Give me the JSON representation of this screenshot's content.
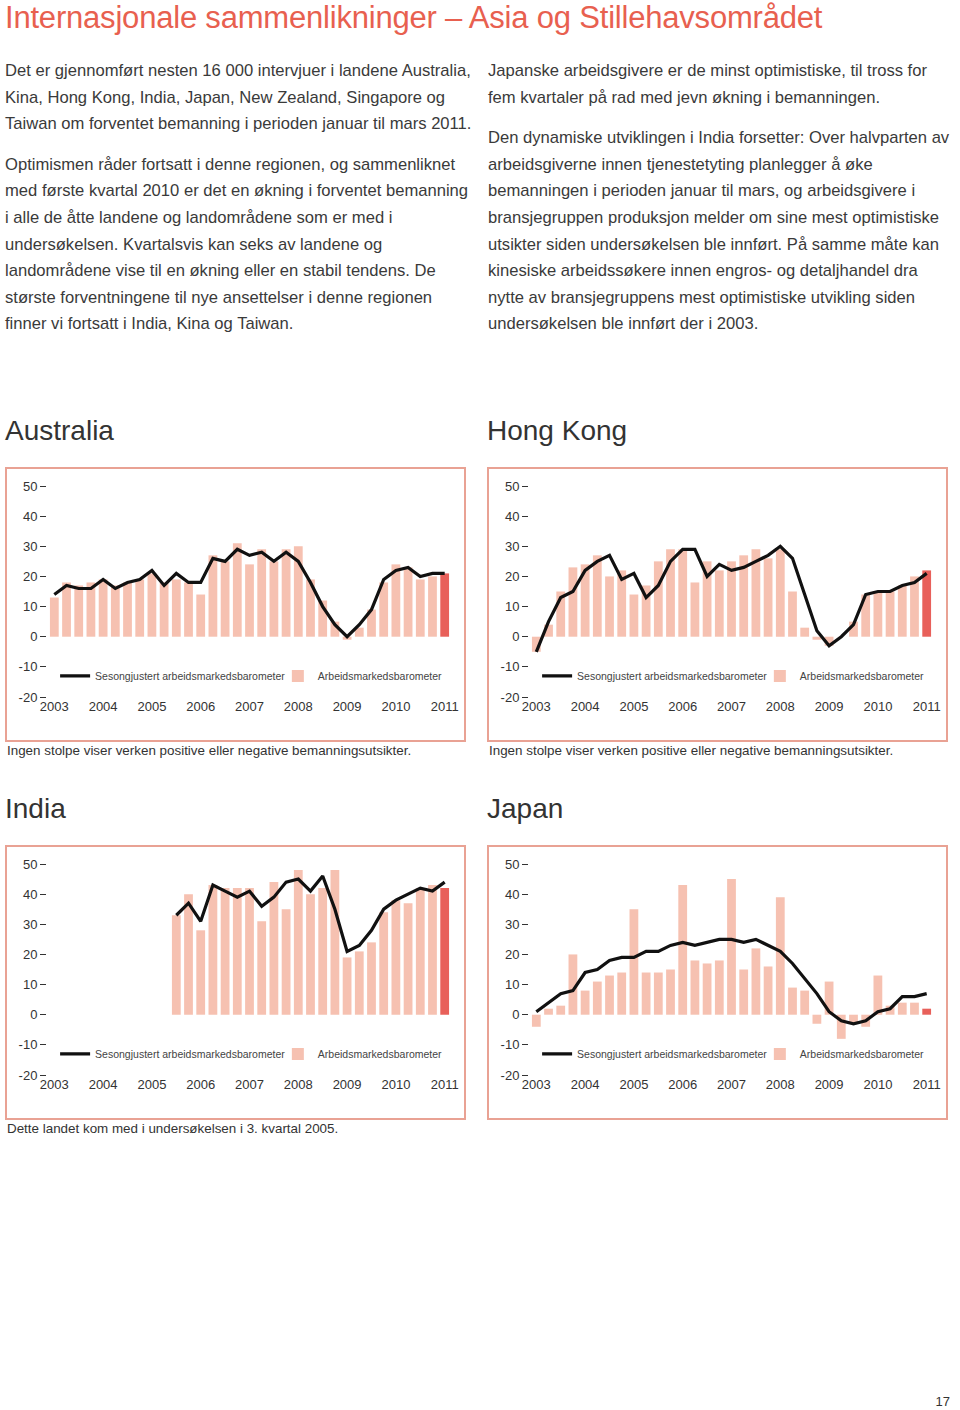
{
  "title": "Internasjonale sammenlikninger – Asia og Stillehavsområdet",
  "columns": [
    [
      "Det er gjennomført nesten 16 000 intervjuer i landene Australia, Kina, Hong Kong, India, Japan, New Zealand, Singapore og Taiwan om forventet bemanning i perioden januar til mars 2011.",
      "Optimismen råder fortsatt i denne regionen, og sammenliknet med første kvartal 2010 er det en økning i forventet bemanning i alle de åtte landene og landområdene som er med i undersøkelsen. Kvartalsvis kan seks av landene og landområdene vise til en økning eller en stabil tendens. De største forventningene til nye ansettelser i denne regionen finner vi fortsatt i India, Kina og Taiwan."
    ],
    [
      "Japanske arbeidsgivere er de minst optimistiske, til tross for fem kvartaler på rad med jevn økning i bemanningen.",
      "Den dynamiske utviklingen i India forsetter: Over halvparten av arbeidsgiverne innen tjenestetyting planlegger å øke bemanningen i perioden januar til mars, og arbeidsgivere i bransjegruppen produksjon melder om sine mest optimistiske utsikter siden undersøkelsen ble innført. På samme måte kan kinesiske arbeidssøkere innen engros- og detaljhandel dra nytte av bransjegruppens mest optimistiske utvikling siden undersøkelsen ble innført der i 2003."
    ]
  ],
  "chart_data": [
    {
      "type": "bar",
      "title": "Australia",
      "note": "Ingen stolpe viser verken positive eller negative bemanningsutsikter.",
      "categories": [
        "2003",
        null,
        null,
        null,
        "2004",
        null,
        null,
        null,
        "2005",
        null,
        null,
        null,
        "2006",
        null,
        null,
        null,
        "2007",
        null,
        null,
        null,
        "2008",
        null,
        null,
        null,
        "2009",
        null,
        null,
        null,
        "2010",
        null,
        null,
        null,
        "2011"
      ],
      "series": [
        {
          "name": "Sesongjustert arbeidsmarkedsbarometer",
          "type": "line",
          "color": "#111111",
          "values": [
            14,
            17,
            16,
            16,
            19,
            16,
            18,
            19,
            22,
            17,
            21,
            18,
            18,
            26,
            25,
            29,
            27,
            28,
            25,
            28,
            25,
            18,
            10,
            4,
            0,
            4,
            9,
            19,
            22,
            23,
            20,
            21,
            21
          ]
        },
        {
          "name": "Arbeidsmarkedsbarometer",
          "type": "bar",
          "color": "#f6c1b1",
          "colors": [
            "#f6c1b1",
            "#f6c1b1",
            "#f6c1b1",
            "#f6c1b1",
            "#f6c1b1",
            "#f6c1b1",
            "#f6c1b1",
            "#f6c1b1",
            "#f6c1b1",
            "#f6c1b1",
            "#f6c1b1",
            "#f6c1b1",
            "#f6c1b1",
            "#f6c1b1",
            "#f6c1b1",
            "#f6c1b1",
            "#f6c1b1",
            "#f6c1b1",
            "#f6c1b1",
            "#f6c1b1",
            "#f6c1b1",
            "#f6c1b1",
            "#f6c1b1",
            "#f6c1b1",
            "#f6c1b1",
            "#f6c1b1",
            "#f6c1b1",
            "#f6c1b1",
            "#f6c1b1",
            "#f6c1b1",
            "#f6c1b1",
            "#f6c1b1",
            "#e8605a"
          ],
          "values": [
            13,
            18,
            17,
            18,
            19,
            17,
            18,
            19,
            21,
            18,
            19,
            18,
            14,
            27,
            25,
            31,
            24,
            29,
            25,
            29,
            30,
            19,
            12,
            5,
            -1,
            3,
            9,
            18,
            24,
            23,
            19,
            20,
            21
          ]
        }
      ],
      "ylim": [
        -20,
        50
      ],
      "yticks": [
        -20,
        -10,
        0,
        10,
        20,
        30,
        40,
        50
      ],
      "grid": false,
      "legend": "bottom"
    },
    {
      "type": "bar",
      "title": "Hong Kong",
      "note": "Ingen stolpe viser verken positive eller negative bemanningsutsikter.",
      "categories": [
        "2003",
        null,
        null,
        null,
        "2004",
        null,
        null,
        null,
        "2005",
        null,
        null,
        null,
        "2006",
        null,
        null,
        null,
        "2007",
        null,
        null,
        null,
        "2008",
        null,
        null,
        null,
        "2009",
        null,
        null,
        null,
        "2010",
        null,
        null,
        null,
        "2011"
      ],
      "series": [
        {
          "name": "Sesongjustert arbeidsmarkedsbarometer",
          "type": "line",
          "color": "#111111",
          "values": [
            -5,
            5,
            13,
            15,
            22,
            25,
            27,
            19,
            21,
            13,
            17,
            25,
            29,
            29,
            20,
            24,
            22,
            23,
            25,
            27,
            30,
            26,
            14,
            2,
            -3,
            0,
            4,
            14,
            15,
            15,
            17,
            18,
            21
          ]
        },
        {
          "name": "Arbeidsmarkedsbarometer",
          "type": "bar",
          "color": "#f6c1b1",
          "colors": [
            "#f6c1b1",
            "#f6c1b1",
            "#f6c1b1",
            "#f6c1b1",
            "#f6c1b1",
            "#f6c1b1",
            "#f6c1b1",
            "#f6c1b1",
            "#f6c1b1",
            "#f6c1b1",
            "#f6c1b1",
            "#f6c1b1",
            "#f6c1b1",
            "#f6c1b1",
            "#f6c1b1",
            "#f6c1b1",
            "#f6c1b1",
            "#f6c1b1",
            "#f6c1b1",
            "#f6c1b1",
            "#f6c1b1",
            "#f6c1b1",
            "#f6c1b1",
            "#f6c1b1",
            "#f6c1b1",
            "#f6c1b1",
            "#f6c1b1",
            "#f6c1b1",
            "#f6c1b1",
            "#f6c1b1",
            "#f6c1b1",
            "#f6c1b1",
            "#e8605a"
          ],
          "values": [
            -5,
            4,
            15,
            23,
            24,
            27,
            20,
            22,
            14,
            17,
            25,
            29,
            29,
            18,
            25,
            22,
            25,
            27,
            29,
            26,
            29,
            15,
            3,
            -1,
            -3,
            0,
            5,
            14,
            15,
            15,
            17,
            20,
            22
          ]
        }
      ],
      "ylim": [
        -20,
        50
      ],
      "yticks": [
        -20,
        -10,
        0,
        10,
        20,
        30,
        40,
        50
      ],
      "grid": false,
      "legend": "bottom"
    },
    {
      "type": "bar",
      "title": "India",
      "note": "Dette landet kom med i undersøkelsen i 3. kvartal 2005.",
      "categories": [
        "2003",
        null,
        null,
        null,
        "2004",
        null,
        null,
        null,
        "2005",
        null,
        null,
        null,
        "2006",
        null,
        null,
        null,
        "2007",
        null,
        null,
        null,
        "2008",
        null,
        null,
        null,
        "2009",
        null,
        null,
        null,
        "2010",
        null,
        null,
        null,
        "2011"
      ],
      "series": [
        {
          "name": "Sesongjustert arbeidsmarkedsbarometer",
          "type": "line",
          "color": "#111111",
          "values": [
            null,
            null,
            null,
            null,
            null,
            null,
            null,
            null,
            null,
            null,
            33,
            37,
            31,
            43,
            41,
            39,
            41,
            36,
            39,
            44,
            45,
            41,
            46,
            35,
            21,
            23,
            28,
            35,
            38,
            40,
            42,
            41,
            44
          ]
        },
        {
          "name": "Arbeidsmarkedsbarometer",
          "type": "bar",
          "color": "#f6c1b1",
          "colors": [
            "#f6c1b1",
            "#f6c1b1",
            "#f6c1b1",
            "#f6c1b1",
            "#f6c1b1",
            "#f6c1b1",
            "#f6c1b1",
            "#f6c1b1",
            "#f6c1b1",
            "#f6c1b1",
            "#f6c1b1",
            "#f6c1b1",
            "#f6c1b1",
            "#f6c1b1",
            "#f6c1b1",
            "#f6c1b1",
            "#f6c1b1",
            "#f6c1b1",
            "#f6c1b1",
            "#f6c1b1",
            "#f6c1b1",
            "#f6c1b1",
            "#f6c1b1",
            "#f6c1b1",
            "#f6c1b1",
            "#f6c1b1",
            "#f6c1b1",
            "#f6c1b1",
            "#f6c1b1",
            "#f6c1b1",
            "#f6c1b1",
            "#f6c1b1",
            "#e8605a"
          ],
          "values": [
            null,
            null,
            null,
            null,
            null,
            null,
            null,
            null,
            null,
            null,
            33,
            40,
            28,
            43,
            42,
            42,
            42,
            31,
            44,
            35,
            48,
            40,
            42,
            48,
            19,
            21,
            24,
            34,
            38,
            37,
            42,
            43,
            42
          ]
        }
      ],
      "ylim": [
        -20,
        50
      ],
      "yticks": [
        -20,
        -10,
        0,
        10,
        20,
        30,
        40,
        50
      ],
      "grid": false,
      "legend": "bottom"
    },
    {
      "type": "bar",
      "title": "Japan",
      "categories": [
        "2003",
        null,
        null,
        null,
        "2004",
        null,
        null,
        null,
        "2005",
        null,
        null,
        null,
        "2006",
        null,
        null,
        null,
        "2007",
        null,
        null,
        null,
        "2008",
        null,
        null,
        null,
        "2009",
        null,
        null,
        null,
        "2010",
        null,
        null,
        null,
        "2011"
      ],
      "series": [
        {
          "name": "Sesongjustert arbeidsmarkedsbarometer",
          "type": "line",
          "color": "#111111",
          "values": [
            1,
            4,
            7,
            8,
            14,
            15,
            18,
            19,
            19,
            21,
            21,
            23,
            24,
            23,
            24,
            25,
            25,
            24,
            25,
            23,
            21,
            17,
            12,
            7,
            1,
            -2,
            -3,
            -2,
            1,
            2,
            6,
            6,
            7
          ]
        },
        {
          "name": "Arbeidsmarkedsbarometer",
          "type": "bar",
          "color": "#f6c1b1",
          "colors": [
            "#f6c1b1",
            "#f6c1b1",
            "#f6c1b1",
            "#f6c1b1",
            "#f6c1b1",
            "#f6c1b1",
            "#f6c1b1",
            "#f6c1b1",
            "#f6c1b1",
            "#f6c1b1",
            "#f6c1b1",
            "#f6c1b1",
            "#f6c1b1",
            "#f6c1b1",
            "#f6c1b1",
            "#f6c1b1",
            "#f6c1b1",
            "#f6c1b1",
            "#f6c1b1",
            "#f6c1b1",
            "#f6c1b1",
            "#f6c1b1",
            "#f6c1b1",
            "#f6c1b1",
            "#f6c1b1",
            "#f6c1b1",
            "#f6c1b1",
            "#f6c1b1",
            "#f6c1b1",
            "#f6c1b1",
            "#f6c1b1",
            "#f6c1b1",
            "#e8605a"
          ],
          "values": [
            -4,
            2,
            3,
            20,
            8,
            11,
            13,
            14,
            35,
            14,
            14,
            15,
            43,
            18,
            17,
            18,
            45,
            15,
            22,
            16,
            39,
            9,
            8,
            -3,
            11,
            -8,
            -3,
            -4,
            13,
            3,
            4,
            4,
            2
          ]
        }
      ],
      "ylim": [
        -20,
        50
      ],
      "yticks": [
        -20,
        -10,
        0,
        10,
        20,
        30,
        40,
        50
      ],
      "grid": false,
      "legend": "bottom"
    }
  ],
  "page_number": "17"
}
